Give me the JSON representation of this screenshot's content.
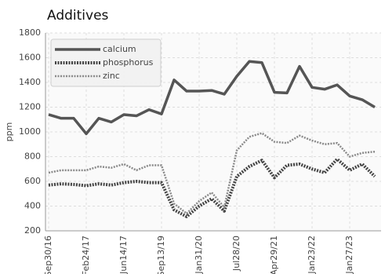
{
  "chart_data": {
    "type": "line",
    "title": "Additives",
    "y_label": "ppm",
    "categories": [
      "Sep30/16",
      null,
      null,
      "Feb24/17",
      null,
      null,
      "Jun14/17",
      null,
      null,
      "Sep13/19",
      null,
      null,
      "Jan31/20",
      null,
      null,
      "Jul28/20",
      null,
      null,
      "Apr29/21",
      null,
      null,
      "Jan23/22",
      null,
      null,
      "Jan27/23",
      null,
      null
    ],
    "series": [
      {
        "name": "calcium",
        "color": "#555555",
        "values": [
          1140,
          1110,
          1110,
          985,
          1110,
          1080,
          1140,
          1130,
          1180,
          1145,
          1420,
          1330,
          1330,
          1335,
          1305,
          1450,
          1570,
          1560,
          1320,
          1315,
          1530,
          1360,
          1345,
          1380,
          1290,
          1260,
          1200
        ]
      },
      {
        "name": "phosphorus",
        "color": "#444444",
        "values": [
          570,
          580,
          575,
          565,
          580,
          570,
          590,
          600,
          590,
          590,
          370,
          315,
          400,
          460,
          360,
          640,
          720,
          770,
          630,
          730,
          740,
          700,
          670,
          780,
          690,
          740,
          640
        ]
      },
      {
        "name": "zinc",
        "color": "#8a8a8a",
        "values": [
          670,
          690,
          690,
          690,
          720,
          710,
          740,
          690,
          730,
          730,
          420,
          340,
          440,
          510,
          390,
          850,
          960,
          990,
          920,
          910,
          970,
          930,
          900,
          910,
          800,
          830,
          840
        ]
      }
    ],
    "ylim": [
      200,
      1800
    ],
    "yticks": [
      200,
      400,
      600,
      800,
      1000,
      1200,
      1400,
      1600,
      1800
    ],
    "grid": true,
    "legend": "upper left"
  }
}
